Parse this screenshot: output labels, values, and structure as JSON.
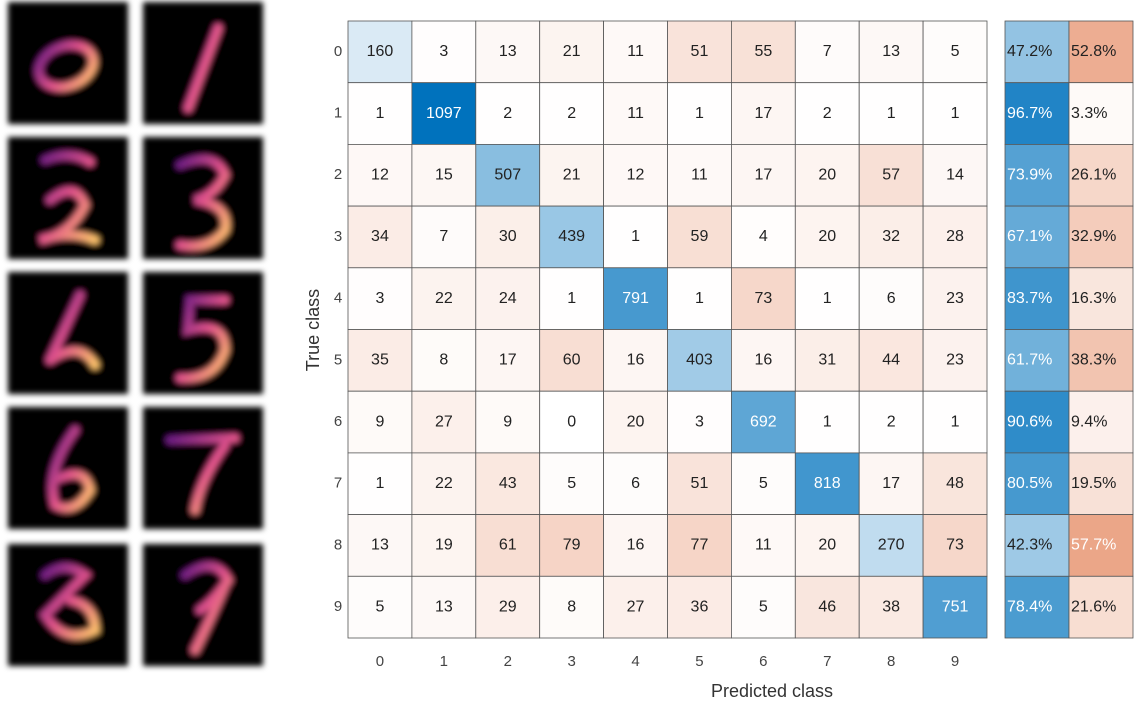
{
  "chart_data": {
    "type": "confusion_matrix",
    "xlabel": "Predicted class",
    "ylabel": "True class",
    "categories": [
      "0",
      "1",
      "2",
      "3",
      "4",
      "5",
      "6",
      "7",
      "8",
      "9"
    ],
    "y_categories": [
      "0",
      "1",
      "2",
      "3",
      "4",
      "5",
      "6",
      "7",
      "8",
      "9"
    ],
    "diagonal_color": "#0072bd",
    "off_diagonal_color": "#d95319",
    "values": [
      [
        160,
        3,
        13,
        21,
        11,
        51,
        55,
        7,
        13,
        5
      ],
      [
        1,
        1097,
        2,
        2,
        11,
        1,
        17,
        2,
        1,
        1
      ],
      [
        12,
        15,
        507,
        21,
        12,
        11,
        17,
        20,
        57,
        14
      ],
      [
        34,
        7,
        30,
        439,
        1,
        59,
        4,
        20,
        32,
        28
      ],
      [
        3,
        22,
        24,
        1,
        791,
        1,
        73,
        1,
        6,
        23
      ],
      [
        35,
        8,
        17,
        60,
        16,
        403,
        16,
        31,
        44,
        23
      ],
      [
        9,
        27,
        9,
        0,
        20,
        3,
        692,
        1,
        2,
        1
      ],
      [
        1,
        22,
        43,
        5,
        6,
        51,
        5,
        818,
        17,
        48
      ],
      [
        13,
        19,
        61,
        79,
        16,
        77,
        11,
        20,
        270,
        73
      ],
      [
        5,
        13,
        29,
        8,
        27,
        36,
        5,
        46,
        38,
        751
      ]
    ],
    "row_summary": [
      {
        "color": "#0072bd",
        "values": [
          47.2,
          96.7,
          73.9,
          67.1,
          83.7,
          61.7,
          90.6,
          80.5,
          42.3,
          78.4
        ],
        "value_labels": [
          "47.2%",
          "96.7%",
          "73.9%",
          "67.1%",
          "83.7%",
          "61.7%",
          "90.6%",
          "80.5%",
          "42.3%",
          "78.4%"
        ]
      },
      {
        "color": "#d95319",
        "values": [
          52.8,
          3.3,
          26.1,
          32.9,
          16.3,
          38.3,
          9.4,
          19.5,
          57.7,
          21.6
        ],
        "value_labels": [
          "52.8%",
          "3.3%",
          "26.1%",
          "32.9%",
          "16.3%",
          "38.3%",
          "9.4%",
          "19.5%",
          "57.7%",
          "21.6%"
        ]
      }
    ]
  }
}
